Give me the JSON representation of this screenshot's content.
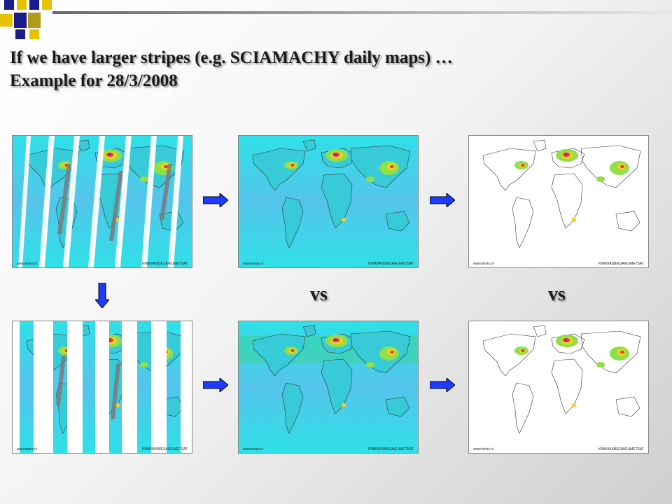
{
  "title": {
    "line1": "If we have larger stripes (e.g. SCIAMACHY daily maps) …",
    "line2": "Example for 28/3/2008"
  },
  "maps": {
    "caption_left": "www.temis.nl",
    "caption_right": "KNMI/IASB/ESA/EUMETSAT"
  },
  "labels": {
    "vs1": "vs",
    "vs2": "vs"
  },
  "colors": {
    "ocean": "#33e6e6",
    "ocean_deep": "#4fc3e6",
    "arrow_blue": "#1e3cff",
    "hotspot": "#c0179e"
  },
  "icons": {
    "arrow_right": "arrow-right-icon",
    "arrow_down": "arrow-down-icon"
  }
}
